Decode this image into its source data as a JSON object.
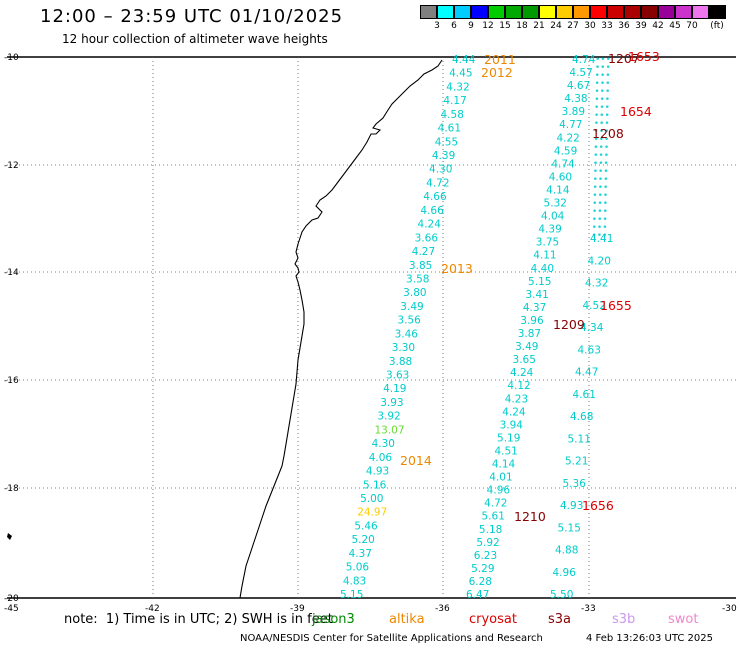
{
  "header": {
    "title": "12:00 – 23:59 UTC 01/10/2025",
    "subtitle": "12 hour collection of altimeter wave heights"
  },
  "colorbar": {
    "colors": [
      "#808080",
      "#00ffff",
      "#00ccff",
      "#0000ff",
      "#00cc00",
      "#00aa00",
      "#009900",
      "#ffff00",
      "#ffcc00",
      "#ff9900",
      "#ff0000",
      "#cc0000",
      "#aa0000",
      "#880000",
      "#990099",
      "#cc33cc",
      "#ee77ee",
      "#000000"
    ],
    "labels": [
      "3",
      "6",
      "9",
      "12",
      "15",
      "18",
      "21",
      "24",
      "27",
      "30",
      "33",
      "36",
      "39",
      "42",
      "45",
      "70",
      "(ft)"
    ]
  },
  "axes": {
    "lat_labels": [
      "-10",
      "-12",
      "-14",
      "-16",
      "-18",
      "-20"
    ],
    "lon_labels": [
      "-45",
      "-42",
      "-39",
      "-36",
      "-33",
      "-30"
    ]
  },
  "tracks": {
    "track_a": {
      "color": "#00cccc",
      "values": [
        "4.44",
        "4.45",
        "4.32",
        "4.17",
        "4.58",
        "4.61",
        "4.55",
        "4.39",
        "4.30",
        "4.72",
        "4.66",
        "4.66",
        "4.24",
        "3.66",
        "4.27",
        "3.85",
        "3.58",
        "3.80",
        "3.49",
        "3.56",
        "3.46",
        "3.30",
        "3.88",
        "3.63",
        "4.19",
        "3.93",
        "3.92",
        "13.07",
        "4.30",
        "4.06",
        "4.93",
        "5.16",
        "5.00",
        "24.97",
        "5.46",
        "5.20",
        "4.37",
        "5.06",
        "4.83",
        "5.15"
      ],
      "highlight_colors": {
        "13.07": "#66dd33",
        "24.97": "#ffcc00"
      }
    },
    "track_b": {
      "color": "#00cccc",
      "values": [
        "4.74",
        "4.57",
        "4.67",
        "4.38",
        "3.89",
        "4.77",
        "4.22",
        "4.59",
        "4.74",
        "4.60",
        "4.14",
        "5.32",
        "4.04",
        "4.39",
        "3.75",
        "4.11",
        "4.40",
        "5.15",
        "3.41",
        "4.37",
        "3.96",
        "3.87",
        "3.49",
        "3.65",
        "4.24",
        "4.12",
        "4.23",
        "4.24",
        "3.94",
        "5.19",
        "4.51",
        "4.14",
        "4.01",
        "4.96",
        "4.72",
        "5.61",
        "5.18",
        "5.92",
        "6.23",
        "5.29",
        "6.28",
        "6.47"
      ]
    },
    "track_c": {
      "color": "#00cccc",
      "values": [
        "4.41",
        "4.20",
        "4.32",
        "4.52",
        "4.34",
        "4.63",
        "4.47",
        "4.61",
        "4.68",
        "5.11",
        "5.21",
        "5.36",
        "4.93",
        "5.15",
        "4.88",
        "4.96",
        "5.50"
      ]
    }
  },
  "time_labels": [
    {
      "text": "2011",
      "color": "#ee8800"
    },
    {
      "text": "2012",
      "color": "#ee8800"
    },
    {
      "text": "2013",
      "color": "#ee8800"
    },
    {
      "text": "2014",
      "color": "#ee8800"
    },
    {
      "text": "1207",
      "color": "#880000"
    },
    {
      "text": "1208",
      "color": "#880000"
    },
    {
      "text": "1209",
      "color": "#880000"
    },
    {
      "text": "1210",
      "color": "#880000"
    },
    {
      "text": "1653",
      "color": "#dd0000"
    },
    {
      "text": "1654",
      "color": "#dd0000"
    },
    {
      "text": "1655",
      "color": "#dd0000"
    },
    {
      "text": "1656",
      "color": "#dd0000"
    }
  ],
  "footer": {
    "note": "note:  1) Time is in UTC; 2) SWH is in feet",
    "satellites": [
      {
        "name": "jason3",
        "color": "#008800"
      },
      {
        "name": "altika",
        "color": "#ee8800"
      },
      {
        "name": "cryosat",
        "color": "#dd0000"
      },
      {
        "name": "s3a",
        "color": "#880000"
      },
      {
        "name": "s3b",
        "color": "#cc99ee"
      },
      {
        "name": "swot",
        "color": "#ee88cc"
      }
    ],
    "credit": "NOAA/NESDIS Center for Satellite Applications and Research",
    "generated": "4 Feb 13:26:03 UTC 2025"
  }
}
